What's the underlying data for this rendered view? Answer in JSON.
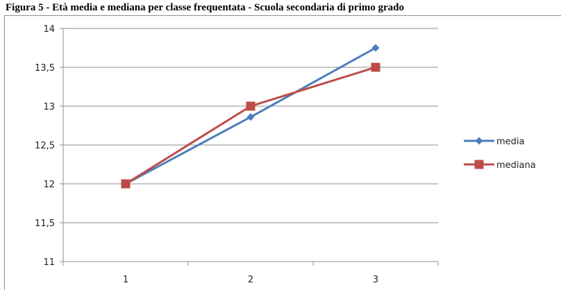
{
  "header": {
    "title": "Figura 5 - Età media e mediana per classe frequentata - Scuola secondaria di primo grado"
  },
  "chart_data": {
    "type": "line",
    "title": "Figura 5 - Età media e mediana per classe frequentata - Scuola secondaria di primo grado",
    "xlabel": "",
    "ylabel": "",
    "categories": [
      "1",
      "2",
      "3"
    ],
    "ylim": [
      11,
      14
    ],
    "yticks": [
      "11",
      "11,5",
      "12",
      "12,5",
      "13",
      "13,5",
      "14"
    ],
    "ytick_values": [
      11,
      11.5,
      12,
      12.5,
      13,
      13.5,
      14
    ],
    "grid": true,
    "legend_position": "right",
    "series": [
      {
        "name": "media",
        "values": [
          12.0,
          12.86,
          13.75
        ],
        "color": "#4a7ebb",
        "marker": "diamond"
      },
      {
        "name": "mediana",
        "values": [
          12.0,
          13.0,
          13.5
        ],
        "color": "#be4b48",
        "marker": "square"
      }
    ]
  }
}
